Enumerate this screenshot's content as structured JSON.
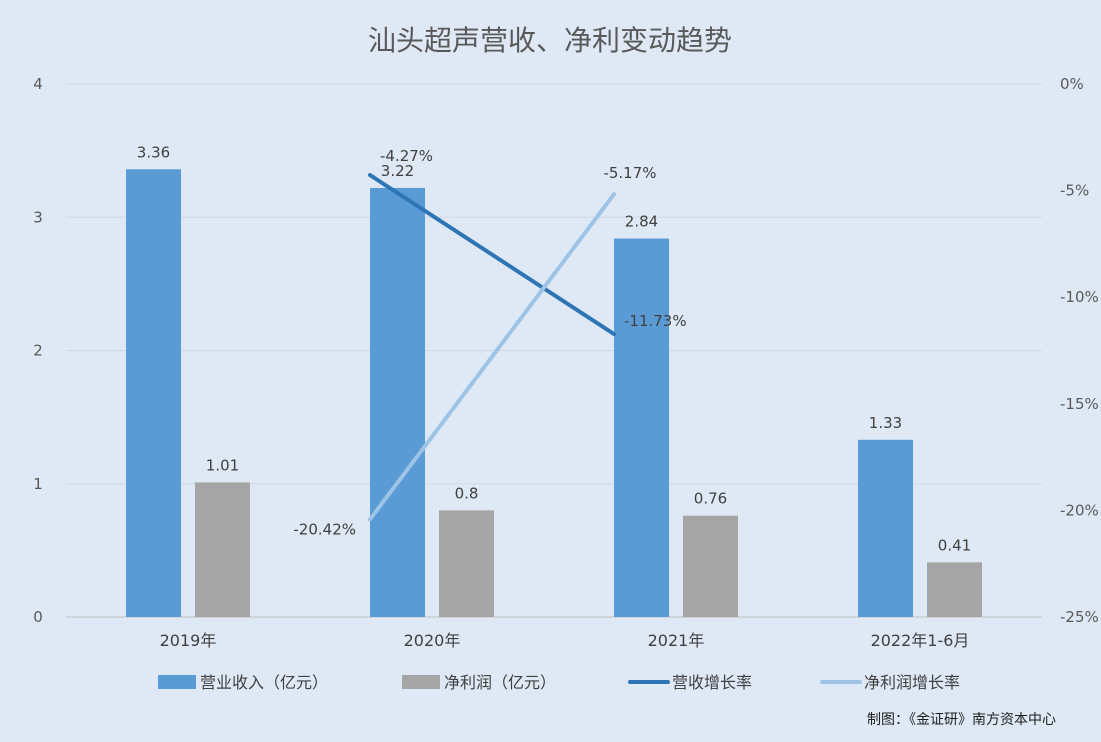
{
  "chart_data": {
    "type": "bar",
    "title": "汕头超声营收、净利变动趋势",
    "categories": [
      "2019年",
      "2020年",
      "2021年",
      "2022年1-6月"
    ],
    "series": [
      {
        "name": "营业收入（亿元）",
        "kind": "bar",
        "axis": "left",
        "color": "#5b9bd5",
        "values": [
          3.36,
          3.22,
          2.84,
          1.33
        ],
        "labels": [
          "3.36",
          "3.22",
          "2.84",
          "1.33"
        ]
      },
      {
        "name": "净利润（亿元）",
        "kind": "bar",
        "axis": "left",
        "color": "#a5a5a5",
        "values": [
          1.01,
          0.8,
          0.76,
          0.41
        ],
        "labels": [
          "1.01",
          "0.8",
          "0.76",
          "0.41"
        ]
      },
      {
        "name": "营收增长率",
        "kind": "line",
        "axis": "right",
        "color": "#2e75b6",
        "points": [
          {
            "category": "2020年",
            "value": -4.27,
            "label": "-4.27%"
          },
          {
            "category": "2021年",
            "value": -11.73,
            "label": "-11.73%"
          }
        ]
      },
      {
        "name": "净利润增长率",
        "kind": "line",
        "axis": "right",
        "color": "#9dc3e6",
        "points": [
          {
            "category": "2020年",
            "value": -20.42,
            "label": "-20.42%"
          },
          {
            "category": "2021年",
            "value": -5.17,
            "label": "-5.17%"
          }
        ]
      }
    ],
    "y_left": {
      "ylim": [
        0,
        4
      ],
      "ticks": [
        "0",
        "1",
        "2",
        "3",
        "4"
      ]
    },
    "y_right": {
      "ylim": [
        -25,
        0
      ],
      "ticks": [
        "0%",
        "-5%",
        "-10%",
        "-15%",
        "-20%",
        "-25%"
      ]
    },
    "grid": true,
    "legend_position": "bottom",
    "credit": "制图：《金证研》南方资本中心"
  }
}
